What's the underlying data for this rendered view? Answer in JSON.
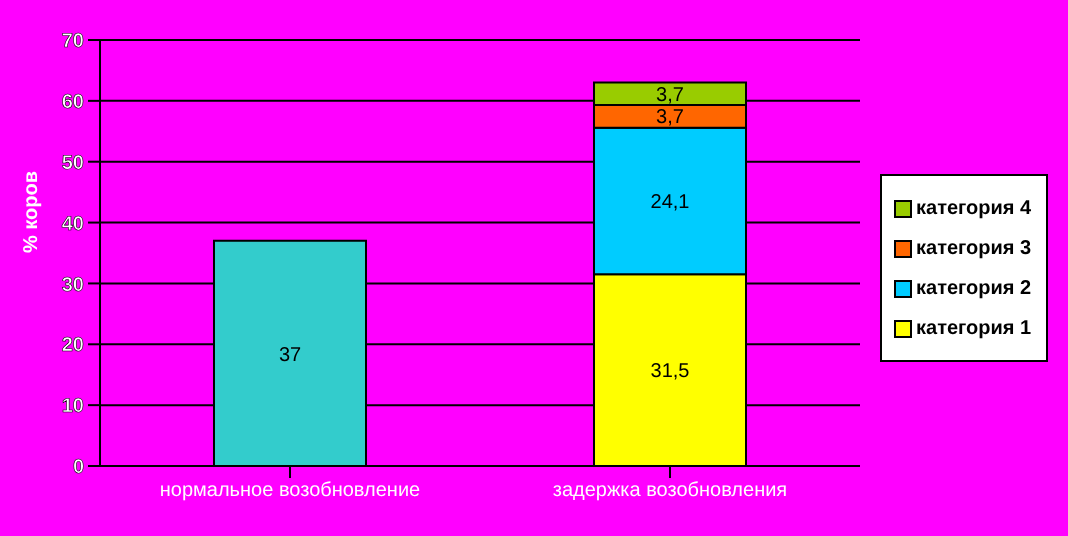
{
  "chart_data": {
    "type": "bar",
    "stacked": true,
    "categories": [
      "нормальное возобновление",
      "задержка возобновления"
    ],
    "ylabel": "% коров",
    "ylim": [
      0,
      70
    ],
    "yticks": [
      0,
      10,
      20,
      30,
      40,
      50,
      60,
      70
    ],
    "grid": "y",
    "legend": "right",
    "series": [
      {
        "color": "#33cccc",
        "values": [
          37,
          null
        ],
        "value_labels": [
          "37",
          null
        ]
      },
      {
        "name": "категория 1",
        "color": "#ffff00",
        "values": [
          null,
          31.5
        ],
        "value_labels": [
          null,
          "31,5"
        ]
      },
      {
        "name": "категория 2",
        "color": "#00ccff",
        "values": [
          null,
          24.1
        ],
        "value_labels": [
          null,
          "24,1"
        ]
      },
      {
        "name": "категория 3",
        "color": "#ff6600",
        "values": [
          null,
          3.7
        ],
        "value_labels": [
          null,
          "3,7"
        ]
      },
      {
        "name": "категория 4",
        "color": "#99cc00",
        "values": [
          null,
          3.7
        ],
        "value_labels": [
          null,
          "3,7"
        ]
      }
    ]
  }
}
